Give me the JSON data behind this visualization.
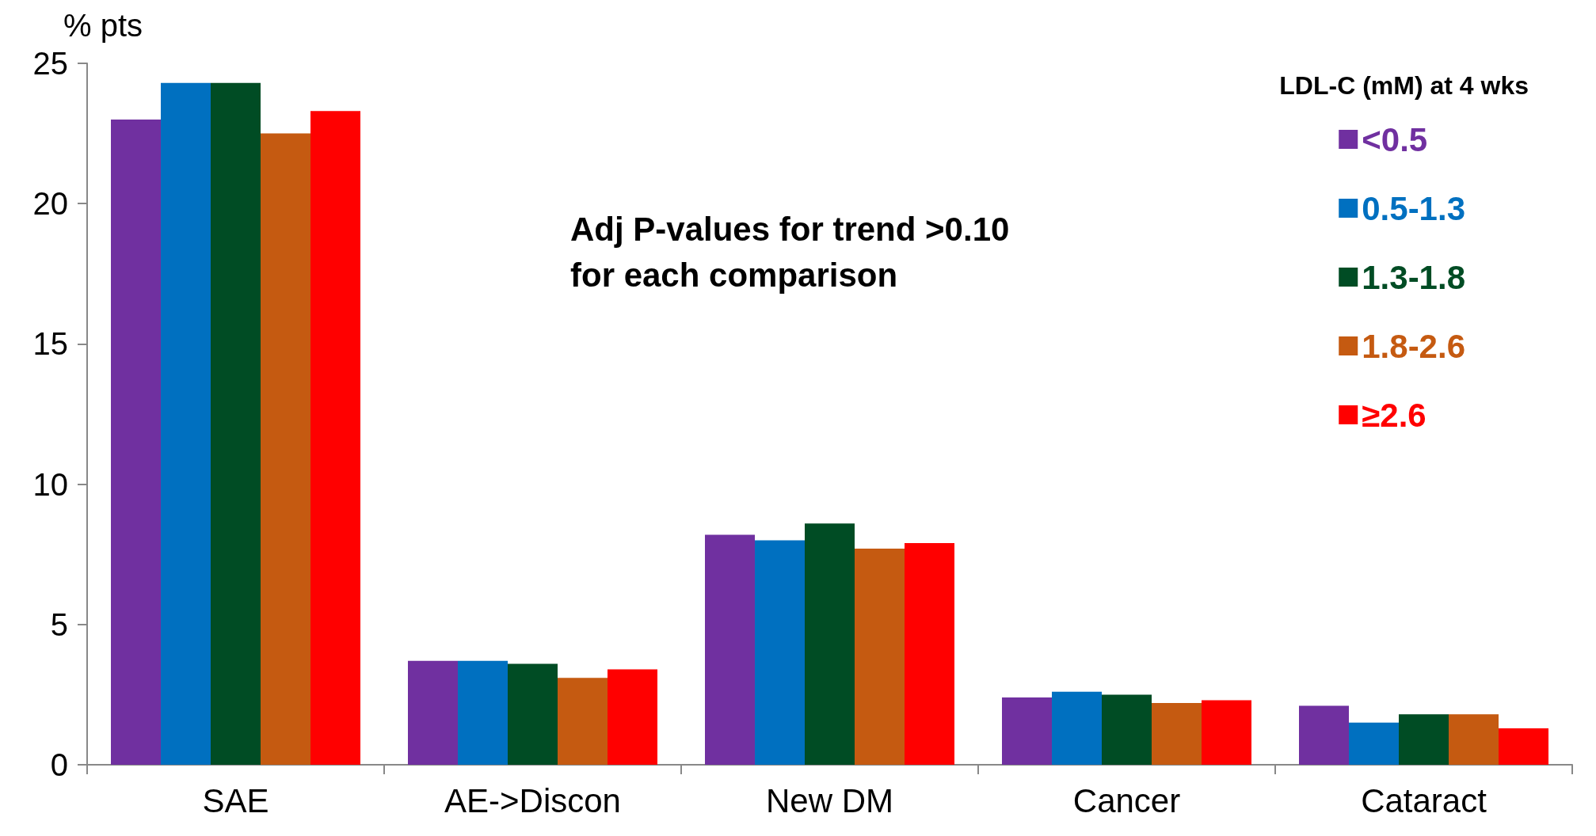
{
  "chart_data": {
    "type": "bar",
    "ylabel": "% pts",
    "legend_title": "LDL-C (mM) at 4 wks",
    "categories": [
      "SAE",
      "AE->Discon",
      "New DM",
      "Cancer",
      "Cataract"
    ],
    "series": [
      {
        "name": "<0.5",
        "color": "#7030a0",
        "values": [
          23.0,
          3.7,
          8.2,
          2.4,
          2.1
        ]
      },
      {
        "name": "0.5-1.3",
        "color": "#0070c0",
        "values": [
          24.3,
          3.7,
          8.0,
          2.6,
          1.5
        ]
      },
      {
        "name": "1.3-1.8",
        "color": "#004c24",
        "values": [
          24.3,
          3.6,
          8.6,
          2.5,
          1.8
        ]
      },
      {
        "name": "1.8-2.6",
        "color": "#c55a11",
        "values": [
          22.5,
          3.1,
          7.7,
          2.2,
          1.8
        ]
      },
      {
        "name": "≥2.6",
        "color": "#ff0000",
        "values": [
          23.3,
          3.4,
          7.9,
          2.3,
          1.3
        ]
      }
    ],
    "ylim": [
      0,
      25
    ],
    "yticks": [
      0,
      5,
      10,
      15,
      20,
      25
    ],
    "grid": false,
    "legend": "top right",
    "annotations": [
      "Adj P-values for trend >0.10\nfor each comparison"
    ]
  }
}
